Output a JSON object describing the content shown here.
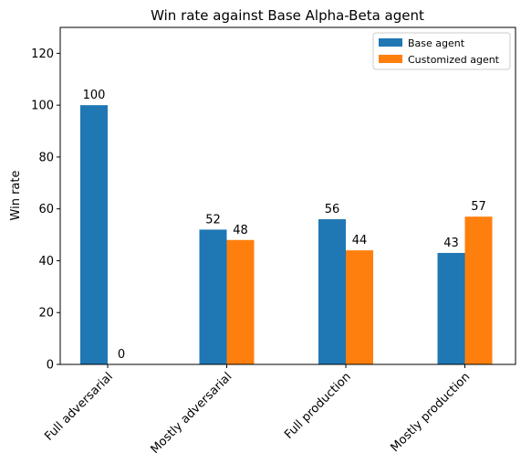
{
  "chart_data": {
    "type": "bar",
    "title": "Win rate against Base Alpha-Beta agent",
    "xlabel": "",
    "ylabel": "Win rate",
    "categories": [
      "Full adversarial",
      "Mostly adversarial",
      "Full production",
      "Mostly production"
    ],
    "series": [
      {
        "name": "Base agent",
        "color": "#1f77b4",
        "values": [
          100,
          52,
          56,
          43
        ]
      },
      {
        "name": "Customized agent",
        "color": "#ff7f0e",
        "values": [
          0,
          48,
          44,
          57
        ]
      }
    ],
    "ylim": [
      0,
      130
    ],
    "yticks": [
      0,
      20,
      40,
      60,
      80,
      100,
      120
    ],
    "legend_position": "top-right",
    "grid": false
  }
}
